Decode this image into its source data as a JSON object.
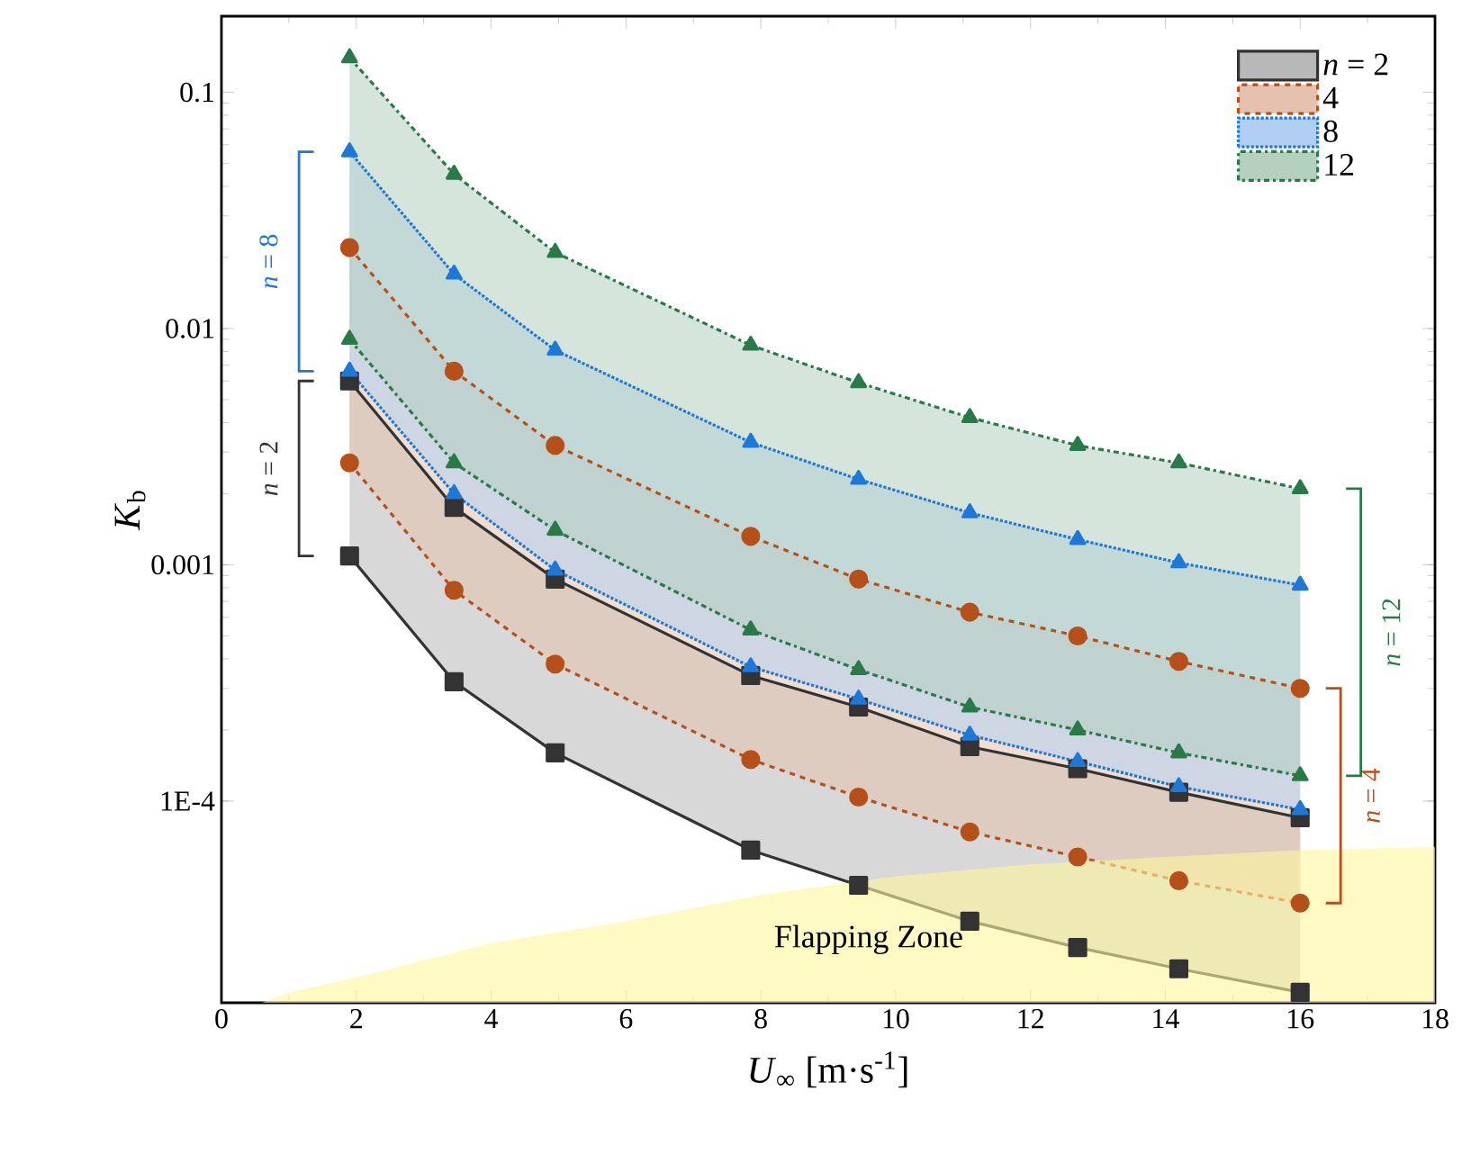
{
  "chart_data": {
    "type": "line",
    "xlabel": "*U*$_{∞}$ [m·s$^{-1}$]",
    "ylabel": "*K*$_{b}$",
    "xlim": [
      0,
      18
    ],
    "xticks": [
      0,
      2,
      4,
      6,
      8,
      10,
      12,
      14,
      16,
      18
    ],
    "ylim": [
      1.4e-05,
      0.21
    ],
    "yticks": [
      {
        "value": 0.0001,
        "label": "1E-4"
      },
      0.001,
      0.01,
      0.1
    ],
    "log": "y",
    "legend": "top right",
    "x": [
      1.9,
      3.45,
      4.95,
      7.85,
      9.45,
      11.1,
      12.7,
      14.2,
      16.0
    ],
    "series": [
      {
        "name": "*n* = 2",
        "color": "#333333",
        "marker": "square",
        "line_style": "solid",
        "values": [
          0.006,
          0.00175,
          0.00087,
          0.00034,
          0.00025,
          0.00017,
          0.000137,
          0.000109,
          8.5e-05
        ],
        "lower": [
          0.00109,
          0.00032,
          0.00016,
          6.2e-05,
          4.4e-05,
          3.1e-05,
          2.4e-05,
          1.95e-05,
          1.55e-05
        ],
        "upper": [
          0.006,
          0.00175,
          0.00087,
          0.00034,
          0.00025,
          0.00017,
          0.000137,
          0.000109,
          8.5e-05
        ]
      },
      {
        "color": "#333333",
        "marker": "square",
        "line_style": "solid",
        "values": [
          0.00109,
          0.00032,
          0.00016,
          6.2e-05,
          4.4e-05,
          3.1e-05,
          2.4e-05,
          1.95e-05,
          1.55e-05
        ]
      },
      {
        "name": "4",
        "color": "#b5501a",
        "marker": "circle",
        "line_style": "dashed",
        "values": [
          0.022,
          0.0066,
          0.0032,
          0.00132,
          0.00087,
          0.00063,
          0.0005,
          0.00039,
          0.0003
        ],
        "lower": [
          0.0027,
          0.00078,
          0.00038,
          0.00015,
          0.000104,
          7.4e-05,
          5.8e-05,
          4.6e-05,
          3.7e-05
        ],
        "upper": [
          0.022,
          0.0066,
          0.0032,
          0.00132,
          0.00087,
          0.00063,
          0.0005,
          0.00039,
          0.0003
        ]
      },
      {
        "color": "#b5501a",
        "marker": "circle",
        "line_style": "dashed",
        "values": [
          0.0027,
          0.00078,
          0.00038,
          0.00015,
          0.000104,
          7.4e-05,
          5.8e-05,
          4.6e-05,
          3.7e-05
        ]
      },
      {
        "name": "8",
        "color": "#1f78d8",
        "marker": "triangle",
        "line_style": "dotted",
        "values": [
          0.056,
          0.017,
          0.0081,
          0.0033,
          0.0023,
          0.00166,
          0.00128,
          0.00102,
          0.00082
        ],
        "lower": [
          0.0066,
          0.002,
          0.00095,
          0.00037,
          0.00027,
          0.00019,
          0.000147,
          0.000115,
          9.2e-05
        ],
        "upper": [
          0.056,
          0.017,
          0.0081,
          0.0033,
          0.0023,
          0.00166,
          0.00128,
          0.00102,
          0.00082
        ]
      },
      {
        "color": "#1f78d8",
        "marker": "triangle",
        "line_style": "dotted",
        "values": [
          0.0066,
          0.002,
          0.00095,
          0.00037,
          0.00027,
          0.00019,
          0.000147,
          0.000115,
          9.2e-05
        ]
      },
      {
        "name": "12",
        "color": "#2a7a48",
        "marker": "triangle down",
        "line_style": "dashdot",
        "values": [
          0.14,
          0.045,
          0.021,
          0.0085,
          0.0059,
          0.0042,
          0.0032,
          0.0027,
          0.0021
        ],
        "lower": [
          0.009,
          0.0027,
          0.0014,
          0.00053,
          0.00036,
          0.00025,
          0.0002,
          0.00016,
          0.000128
        ],
        "upper": [
          0.14,
          0.045,
          0.021,
          0.0085,
          0.0059,
          0.0042,
          0.0032,
          0.0027,
          0.0021
        ]
      },
      {
        "color": "#2a7a48",
        "marker": "triangle down",
        "line_style": "dashdot",
        "values": [
          0.009,
          0.0027,
          0.0014,
          0.00053,
          0.00036,
          0.00025,
          0.0002,
          0.00016,
          0.000128
        ]
      },
      {
        "type": "area",
        "color": "#fff59d",
        "x": [
          0.6,
          1,
          2,
          4,
          6,
          8,
          10,
          12,
          14,
          16,
          18
        ],
        "values": [
          1.4e-05,
          1.55e-05,
          1.79e-05,
          2.5e-05,
          3.1e-05,
          4e-05,
          4.8e-05,
          5.4e-05,
          5.8e-05,
          6.2e-05,
          6.4e-05
        ]
      }
    ],
    "annotations": [
      "Flapping Zone",
      "*n* = 8",
      "*n* = 2",
      "*n* = 12",
      "*n* = 4"
    ]
  }
}
